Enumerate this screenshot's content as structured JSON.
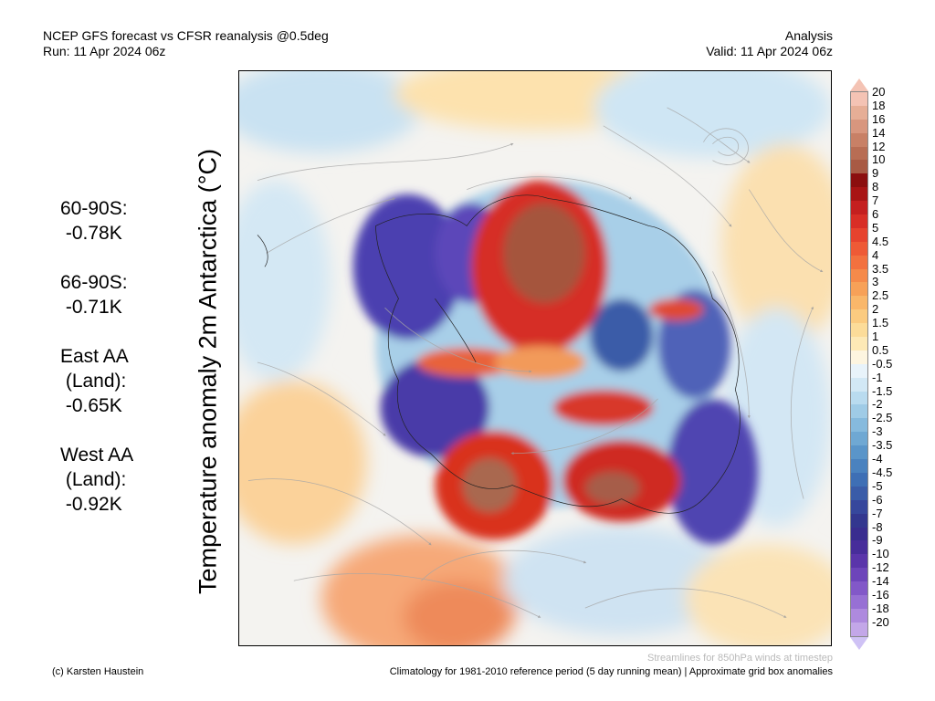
{
  "header": {
    "line1": "NCEP GFS forecast vs CFSR reanalysis @0.5deg",
    "line2": "Run: 11 Apr 2024 06z",
    "right1": "Analysis",
    "right2": "Valid: 11 Apr 2024 06z"
  },
  "vertical_title": "Temperature anomaly 2m Antarctica (°C)",
  "stats": [
    {
      "name": "60-90S:",
      "value": " -0.78K"
    },
    {
      "name": "66-90S:",
      "value": " -0.71K"
    },
    {
      "name": "East AA\n (Land):",
      "value": " -0.65K"
    },
    {
      "name": "West AA\n (Land):",
      "value": " -0.92K"
    }
  ],
  "colorbar": {
    "labels": [
      "20",
      "18",
      "16",
      "14",
      "12",
      "10",
      "9",
      "8",
      "7",
      "6",
      "5",
      "4.5",
      "4",
      "3.5",
      "3",
      "2.5",
      "2",
      "1.5",
      "1",
      "0.5",
      "-0.5",
      "-1",
      "-1.5",
      "-2",
      "-2.5",
      "-3",
      "-3.5",
      "-4",
      "-4.5",
      "-5",
      "-6",
      "-7",
      "-8",
      "-9",
      "-10",
      "-12",
      "-14",
      "-16",
      "-18",
      "-20"
    ],
    "colors": [
      "#f4c3b4",
      "#e6ae96",
      "#d8967e",
      "#c88066",
      "#b86d54",
      "#a85a44",
      "#8b0f0f",
      "#a81515",
      "#c41f1f",
      "#d82e26",
      "#e6432e",
      "#ee5a36",
      "#f2713f",
      "#f58a4a",
      "#f7a158",
      "#f9b76a",
      "#fbcb80",
      "#fcdc99",
      "#fde9b6",
      "#fdf5e0",
      "#e8f3fa",
      "#d2e8f5",
      "#b9dbef",
      "#9fcbe6",
      "#86badd",
      "#6fa8d3",
      "#5a95c9",
      "#4a82bf",
      "#3e6fb5",
      "#3a5ca8",
      "#36479c",
      "#33378f",
      "#392d8f",
      "#472d9a",
      "#5a35aa",
      "#6d45ba",
      "#8258c8",
      "#9770d4",
      "#ae8ade",
      "#c3a7e8"
    ]
  },
  "footer": {
    "streamlines": "Streamlines for 850hPa winds at timestep",
    "copyright": "(c) Karsten Haustein",
    "climatology": "Climatology for 1981-2010 reference period (5 day running mean) | Approximate grid box anomalies"
  }
}
